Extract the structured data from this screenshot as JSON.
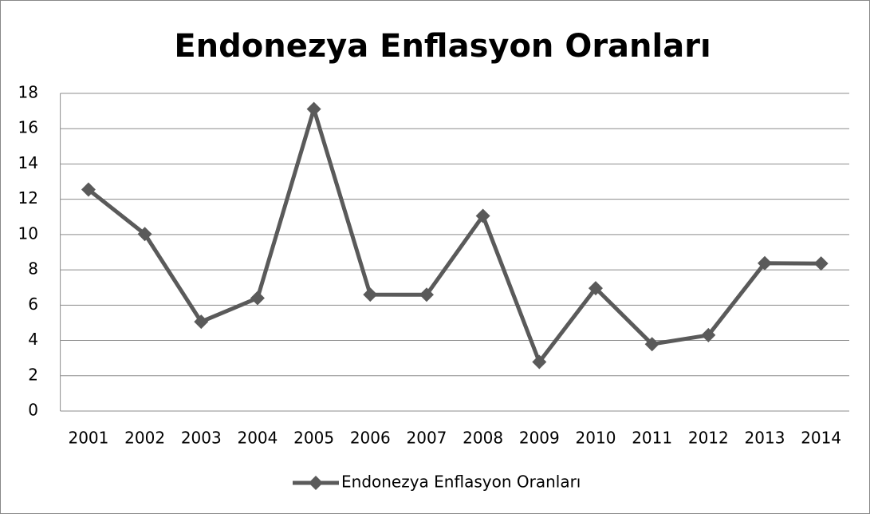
{
  "chart_data": {
    "type": "line",
    "title": "Endonezya Enflasyon Oranları",
    "categories": [
      "2001",
      "2002",
      "2003",
      "2004",
      "2005",
      "2006",
      "2007",
      "2008",
      "2009",
      "2010",
      "2011",
      "2012",
      "2013",
      "2014"
    ],
    "series": [
      {
        "name": "Endonezya Enflasyon Oranları",
        "color": "#5a5a5a",
        "values": [
          12.55,
          10.03,
          5.06,
          6.4,
          17.11,
          6.6,
          6.59,
          11.06,
          2.78,
          6.96,
          3.79,
          4.3,
          8.38,
          8.36
        ]
      }
    ],
    "ylim": [
      0,
      18
    ],
    "yticks": [
      0,
      2,
      4,
      6,
      8,
      10,
      12,
      14,
      16,
      18
    ],
    "grid": true,
    "legend": "bottom"
  }
}
